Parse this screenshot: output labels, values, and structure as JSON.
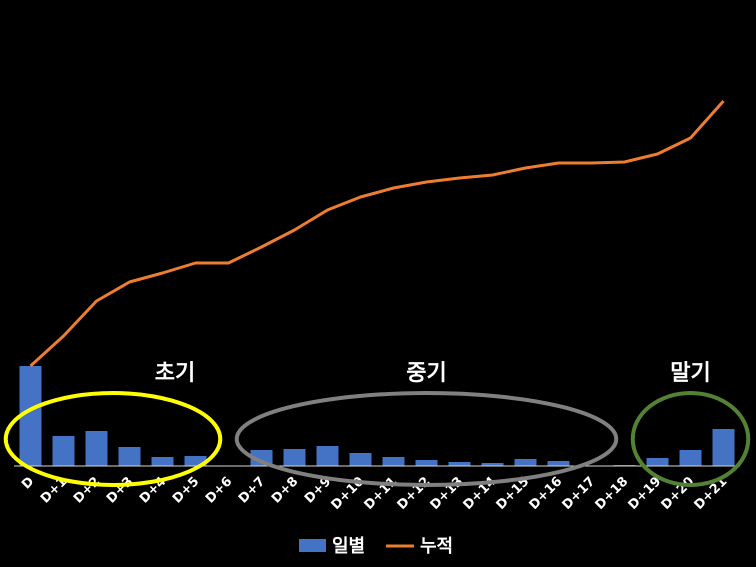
{
  "chart_data": {
    "type": "bar",
    "categories": [
      "D",
      "D+1",
      "D+2",
      "D+3",
      "D+4",
      "D+5",
      "D+6",
      "D+7",
      "D+8",
      "D+9",
      "D+10",
      "D+11",
      "D+12",
      "D+13",
      "D+14",
      "D+15",
      "D+16",
      "D+17",
      "D+18",
      "D+19",
      "D+20",
      "D+21"
    ],
    "series": [
      {
        "name": "일별",
        "type": "bar",
        "color": "#4472C4",
        "values": [
          100,
          30,
          35,
          19,
          9,
          10,
          0,
          16,
          17,
          20,
          13,
          9,
          6,
          4,
          3,
          7,
          5,
          0,
          1,
          8,
          16,
          37
        ]
      },
      {
        "name": "누적",
        "type": "line",
        "color": "#ED7D31",
        "values": [
          100,
          130,
          165,
          184,
          193,
          203,
          203,
          219,
          236,
          256,
          269,
          278,
          284,
          288,
          291,
          298,
          303,
          303,
          304,
          312,
          328,
          365
        ]
      }
    ],
    "ylim": [
      0,
      375
    ],
    "grid": false,
    "legend": "bottom",
    "annotations": [
      {
        "label": "초기",
        "color": "#FFFF00",
        "from": "D",
        "to": "D+5"
      },
      {
        "label": "중기",
        "color": "#808080",
        "from": "D+7",
        "to": "D+17"
      },
      {
        "label": "말기",
        "color": "#548235",
        "from": "D+19",
        "to": "D+21"
      }
    ]
  }
}
